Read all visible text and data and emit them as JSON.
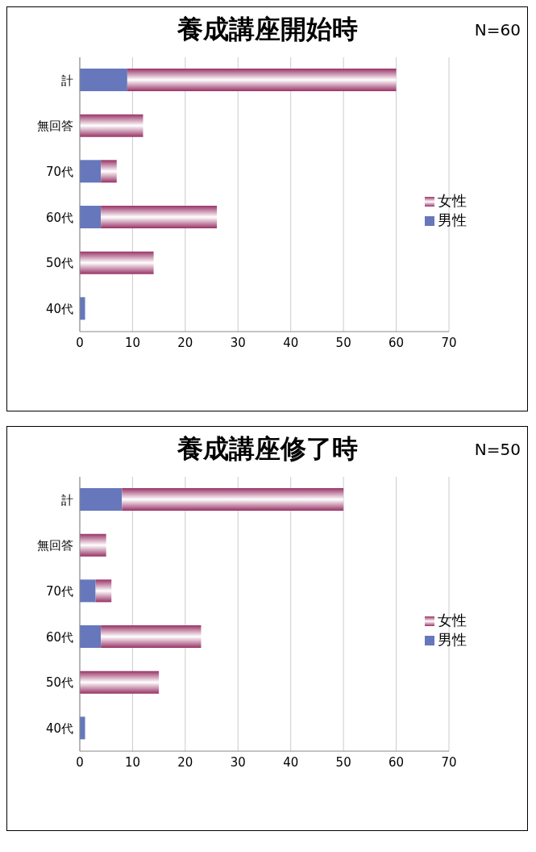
{
  "chart_data": [
    {
      "type": "bar",
      "orientation": "horizontal",
      "stacked": true,
      "title": "養成講座開始時",
      "annotations": [
        "N=60"
      ],
      "categories": [
        "計",
        "無回答",
        "70代",
        "60代",
        "50代",
        "40代"
      ],
      "series": [
        {
          "name": "男性",
          "color": "#6677bb",
          "values": [
            9,
            null,
            4,
            4,
            null,
            1
          ]
        },
        {
          "name": "女性",
          "color": "#993366",
          "values": [
            51,
            12,
            3,
            22,
            14,
            null
          ]
        }
      ],
      "xlim": [
        0,
        70
      ],
      "xticks": [
        0,
        10,
        20,
        30,
        40,
        50,
        60,
        70
      ],
      "grid": "x",
      "legend": "right"
    },
    {
      "type": "bar",
      "orientation": "horizontal",
      "stacked": true,
      "title": "養成講座修了時",
      "annotations": [
        "N=50"
      ],
      "categories": [
        "計",
        "無回答",
        "70代",
        "60代",
        "50代",
        "40代"
      ],
      "series": [
        {
          "name": "男性",
          "color": "#6677bb",
          "values": [
            8,
            null,
            3,
            4,
            null,
            1
          ]
        },
        {
          "name": "女性",
          "color": "#993366",
          "values": [
            42,
            5,
            3,
            19,
            15,
            null
          ]
        }
      ],
      "xlim": [
        0,
        70
      ],
      "xticks": [
        0,
        10,
        20,
        30,
        40,
        50,
        60,
        70
      ],
      "grid": "x",
      "legend": "right"
    }
  ]
}
